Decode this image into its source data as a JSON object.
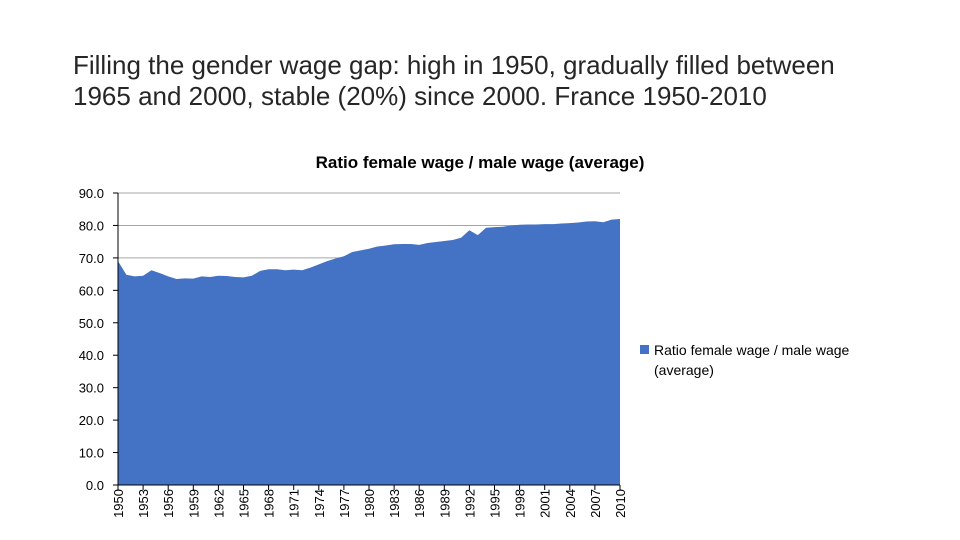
{
  "slide": {
    "title": "Filling the gender wage gap: high in 1950, gradually filled between 1965 and 2000, stable (20%) since 2000. France 1950-2010"
  },
  "colors": {
    "series": "#4472C4",
    "gridline": "#a6a6a6",
    "axis": "#000000"
  },
  "chart_data": {
    "type": "area",
    "title": "Ratio female wage / male wage (average)",
    "xlabel": "",
    "ylabel": "",
    "ylim": [
      0,
      90
    ],
    "yticks": [
      "0.0",
      "10.0",
      "20.0",
      "30.0",
      "40.0",
      "50.0",
      "60.0",
      "70.0",
      "80.0",
      "90.0"
    ],
    "xtick_labels": [
      "1950",
      "1953",
      "1956",
      "1959",
      "1962",
      "1965",
      "1968",
      "1971",
      "1974",
      "1977",
      "1980",
      "1983",
      "1986",
      "1989",
      "1992",
      "1995",
      "1998",
      "2001",
      "2004",
      "2007",
      "2010"
    ],
    "grid": true,
    "legend_position": "right",
    "x": [
      1950,
      1951,
      1952,
      1953,
      1954,
      1955,
      1956,
      1957,
      1958,
      1959,
      1960,
      1961,
      1962,
      1963,
      1964,
      1965,
      1966,
      1967,
      1968,
      1969,
      1970,
      1971,
      1972,
      1973,
      1974,
      1975,
      1976,
      1977,
      1978,
      1979,
      1980,
      1981,
      1982,
      1983,
      1984,
      1985,
      1986,
      1987,
      1988,
      1989,
      1990,
      1991,
      1992,
      1993,
      1994,
      1995,
      1996,
      1997,
      1998,
      1999,
      2000,
      2001,
      2002,
      2003,
      2004,
      2005,
      2006,
      2007,
      2008,
      2009,
      2010
    ],
    "series": [
      {
        "name": "Ratio female wage / male wage (average)",
        "values": [
          69.0,
          64.8,
          64.3,
          64.5,
          66.2,
          65.3,
          64.3,
          63.5,
          63.7,
          63.6,
          64.3,
          64.1,
          64.5,
          64.4,
          64.1,
          64.0,
          64.5,
          66.0,
          66.5,
          66.5,
          66.2,
          66.4,
          66.2,
          67.0,
          68.0,
          69.0,
          69.8,
          70.5,
          71.8,
          72.3,
          72.8,
          73.5,
          73.8,
          74.2,
          74.3,
          74.3,
          74.0,
          74.6,
          74.9,
          75.2,
          75.5,
          76.2,
          78.5,
          77.0,
          79.3,
          79.5,
          79.6,
          80.0,
          80.2,
          80.3,
          80.3,
          80.4,
          80.4,
          80.6,
          80.7,
          80.9,
          81.2,
          81.3,
          81.0,
          81.8,
          82.0
        ]
      }
    ]
  }
}
